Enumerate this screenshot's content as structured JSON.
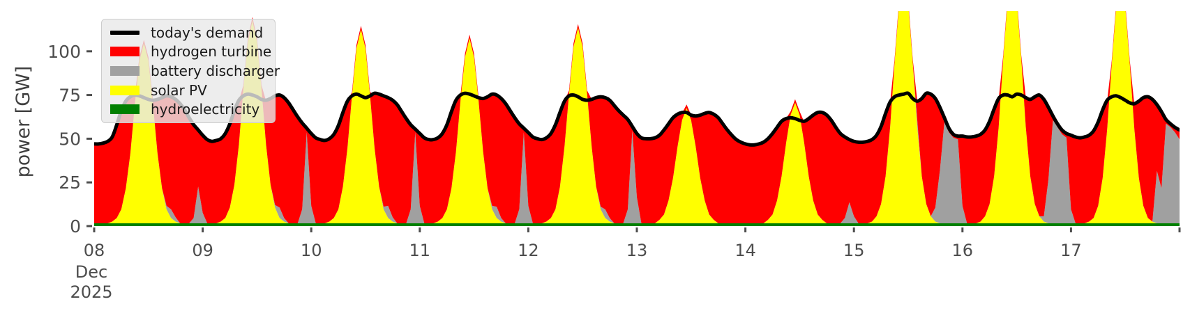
{
  "figure": {
    "background": "#ffffff",
    "tick_color": "#4d4d4d",
    "demand_line_color": "#000000",
    "demand_line_width": 5
  },
  "axes": {
    "ylabel": "power [GW]",
    "y_ticks": [
      0,
      25,
      50,
      75,
      100
    ],
    "ylim": [
      0,
      123
    ],
    "x_tick_labels": [
      "08",
      "09",
      "10",
      "11",
      "12",
      "13",
      "14",
      "15",
      "16",
      "17"
    ],
    "x_offset_label_line1": "Dec",
    "x_offset_label_line2": "2025",
    "grid": false
  },
  "legend": {
    "position": "upper left",
    "entries": [
      {
        "label": "today's demand",
        "color": "#000000",
        "type": "line"
      },
      {
        "label": "hydrogen turbine",
        "color": "#ff0000",
        "type": "patch"
      },
      {
        "label": "battery discharger",
        "color": "#a0a0a0",
        "type": "patch"
      },
      {
        "label": "solar PV",
        "color": "#ffff00",
        "type": "patch"
      },
      {
        "label": "hydroelectricity",
        "color": "#008000",
        "type": "patch"
      }
    ]
  },
  "chart_data": {
    "type": "area",
    "title": "",
    "xlabel": "Dec 2025",
    "ylabel": "power [GW]",
    "x_unit": "hours from 2025-12-08 00:00, hourly samples per day",
    "stack_order_bottom_to_top": [
      "hydroelectricity",
      "solar PV",
      "battery discharger",
      "hydrogen turbine"
    ],
    "hydroelectricity_constant_gw": 1.6,
    "colors": {
      "today's demand": "#000000",
      "hydrogen turbine": "#ff0000",
      "battery discharger": "#a0a0a0",
      "solar PV": "#ffff00",
      "hydroelectricity": "#008000"
    },
    "days": [
      {
        "label": "08",
        "demand": [
          47,
          47,
          47.5,
          48.5,
          51,
          58,
          66,
          71.5,
          74,
          75,
          74.5,
          73.5,
          72.5,
          72,
          72.5,
          73.5,
          74.5,
          74,
          72.5,
          70,
          66.5,
          62,
          58,
          55
        ],
        "solar_pv": [
          0,
          0,
          0,
          0,
          1,
          3,
          8,
          20,
          40,
          68,
          93,
          103,
          93,
          68,
          40,
          20,
          8,
          3,
          1,
          0,
          0,
          0,
          0,
          0
        ],
        "battery_discharger": [
          0,
          0,
          0,
          0,
          0,
          0,
          0,
          0,
          0,
          0,
          0,
          0,
          0,
          0,
          0,
          0,
          2,
          5,
          2.5,
          0,
          0,
          0,
          3,
          21
        ],
        "hydrogen_turbine": [
          45,
          45,
          46,
          47,
          48,
          53,
          56,
          50,
          32,
          5,
          2,
          2,
          2,
          2,
          31,
          52,
          63,
          64,
          67,
          68,
          65,
          60,
          53,
          32
        ]
      },
      {
        "label": "09",
        "demand": [
          52,
          49.5,
          48.5,
          49,
          50,
          53,
          58.5,
          66,
          72,
          74.5,
          75.5,
          75,
          74,
          72.5,
          72,
          73,
          74.5,
          75,
          73.5,
          70.5,
          66.5,
          62.5,
          59,
          56
        ],
        "solar_pv": [
          0,
          0,
          0,
          0,
          1,
          3,
          9,
          22,
          45,
          77,
          104,
          116,
          104,
          77,
          45,
          22,
          9,
          3,
          1,
          0,
          0,
          0,
          0,
          0
        ],
        "battery_discharger": [
          6,
          0,
          0,
          0,
          0,
          0,
          0,
          0,
          0,
          0,
          0,
          0,
          0,
          0,
          0,
          0,
          1.5,
          6,
          2,
          0,
          0,
          0,
          8,
          52
        ],
        "hydrogen_turbine": [
          44,
          48,
          47,
          47,
          47,
          48,
          48,
          42,
          25,
          2,
          2,
          2,
          2,
          2,
          25,
          49,
          63,
          64,
          69,
          69,
          65,
          61,
          49,
          2
        ]
      },
      {
        "label": "10",
        "demand": [
          53,
          50.5,
          49.5,
          49,
          50,
          52.5,
          57.5,
          65,
          71.5,
          74.5,
          75.5,
          74.5,
          73.5,
          74.5,
          76,
          75.5,
          74.5,
          73.5,
          72,
          69.5,
          65.5,
          61.5,
          58,
          55.5
        ],
        "solar_pv": [
          0,
          0,
          0,
          0,
          1,
          3,
          8,
          21,
          43,
          73,
          100,
          111,
          100,
          73,
          43,
          21,
          8,
          3,
          1,
          0,
          0,
          0,
          0,
          0
        ],
        "battery_discharger": [
          10,
          0,
          0,
          0,
          0,
          0,
          0,
          0,
          0,
          0,
          0,
          0,
          0,
          0,
          0,
          0,
          1.5,
          7,
          2.5,
          0,
          0,
          0,
          8,
          52
        ],
        "hydrogen_turbine": [
          41,
          49,
          48,
          47,
          47,
          48,
          48,
          42,
          27,
          2,
          2,
          2,
          2,
          2,
          31,
          53,
          63,
          62,
          67,
          68,
          64,
          60,
          48,
          2
        ]
      },
      {
        "label": "11",
        "demand": [
          53,
          50.5,
          49.5,
          49.5,
          50.5,
          53,
          58,
          65.5,
          72,
          75,
          76,
          75.5,
          74.5,
          73.5,
          73,
          74,
          75.5,
          75,
          73,
          70,
          66,
          62,
          58.5,
          56
        ],
        "solar_pv": [
          0,
          0,
          0,
          0,
          1,
          3,
          8,
          20,
          41,
          70,
          95,
          106,
          95,
          70,
          41,
          20,
          8,
          3,
          1,
          0,
          0,
          0,
          0,
          0
        ],
        "battery_discharger": [
          10,
          0,
          0,
          0,
          0,
          0,
          0,
          0,
          0,
          0,
          0,
          0,
          0,
          0,
          0,
          0,
          2,
          6.5,
          2,
          0,
          0,
          0,
          8,
          52
        ],
        "hydrogen_turbine": [
          41,
          49,
          48,
          48,
          48,
          50,
          48,
          44,
          29,
          3,
          2,
          2,
          2,
          2,
          30,
          52,
          64,
          64,
          68,
          68,
          64,
          60,
          49,
          2
        ]
      },
      {
        "label": "12",
        "demand": [
          53.5,
          51,
          50,
          49.5,
          50.5,
          53,
          58,
          65,
          71.5,
          74.5,
          75,
          74,
          72.5,
          72,
          72.5,
          73.5,
          74,
          73.5,
          72,
          69,
          66,
          63.5,
          61,
          57
        ],
        "solar_pv": [
          0,
          0,
          0,
          0,
          1,
          3,
          8,
          21,
          44,
          74,
          101,
          112,
          101,
          74,
          44,
          21,
          8,
          3,
          1,
          0,
          0,
          0,
          0,
          0
        ],
        "battery_discharger": [
          10,
          0,
          0,
          0,
          0,
          0,
          0,
          0,
          0,
          0,
          0,
          0,
          0,
          0,
          0,
          0,
          1.5,
          5,
          2,
          0,
          0,
          0,
          8,
          53
        ],
        "hydrogen_turbine": [
          42,
          49,
          48,
          48,
          48,
          48,
          48,
          42,
          26,
          2,
          2,
          2,
          2,
          2,
          27,
          51,
          63,
          64,
          67,
          67,
          64,
          62,
          51,
          2
        ]
      },
      {
        "label": "13",
        "demand": [
          53,
          50.5,
          50,
          50,
          50.5,
          52,
          55,
          58.5,
          62,
          64,
          65,
          65,
          63.5,
          63,
          63.5,
          64.5,
          65,
          64,
          62,
          58.5,
          55,
          52,
          49.5,
          48
        ],
        "solar_pv": [
          0,
          0,
          0,
          0,
          0,
          2,
          5,
          13,
          26,
          44,
          59,
          66,
          59,
          44,
          26,
          13,
          5,
          2,
          0,
          0,
          0,
          0,
          0,
          0
        ],
        "battery_discharger": [
          15,
          0,
          0,
          0,
          0,
          0,
          0,
          0,
          0,
          0,
          0,
          0,
          0,
          0,
          0,
          0,
          0,
          0,
          0,
          0,
          0,
          0,
          0,
          0
        ],
        "hydrogen_turbine": [
          36,
          49,
          48,
          48,
          49,
          48,
          48,
          44,
          34,
          18,
          4,
          2,
          3,
          17,
          36,
          50,
          58,
          60,
          60,
          57,
          53,
          50,
          48,
          46
        ]
      },
      {
        "label": "14",
        "demand": [
          47,
          46.5,
          46.5,
          47,
          48,
          50,
          53,
          56.5,
          60,
          61.5,
          62,
          61.5,
          60.5,
          60,
          61.5,
          63.5,
          65,
          65,
          63.5,
          60.5,
          56.5,
          53,
          51,
          49.5
        ],
        "solar_pv": [
          0,
          0,
          0,
          0,
          0,
          2,
          5,
          13,
          27,
          46,
          62,
          69,
          62,
          46,
          27,
          13,
          5,
          2,
          0,
          0,
          0,
          0,
          0,
          0
        ],
        "battery_discharger": [
          0,
          0,
          0,
          0,
          0,
          0,
          0,
          0,
          0,
          0,
          0,
          0,
          0,
          0,
          0,
          0,
          0,
          0,
          0,
          0,
          0,
          0,
          3,
          12
        ],
        "hydrogen_turbine": [
          45,
          45,
          45,
          45,
          46,
          46,
          46,
          42,
          31,
          14,
          2,
          2,
          2,
          12,
          33,
          49,
          58,
          61,
          62,
          59,
          55,
          51,
          46,
          36
        ]
      },
      {
        "label": "15",
        "demand": [
          48.5,
          48,
          48,
          48.5,
          49.5,
          52,
          57,
          64.5,
          71,
          74,
          75,
          75.5,
          76,
          73,
          71.5,
          73,
          76,
          75.5,
          73,
          68,
          62,
          56,
          52.5,
          51.5
        ],
        "solar_pv": [
          0,
          0,
          0,
          0,
          1,
          4,
          11,
          27,
          55,
          92,
          126,
          140,
          126,
          92,
          55,
          27,
          11,
          4,
          1,
          0,
          0,
          0,
          0,
          0
        ],
        "battery_discharger": [
          4,
          0,
          0,
          0,
          0,
          0,
          0,
          0,
          0,
          0,
          0,
          0,
          0,
          0,
          4,
          0,
          0,
          0,
          8,
          30,
          58,
          52,
          49,
          48
        ],
        "hydrogen_turbine": [
          43,
          46,
          46,
          47,
          47,
          46,
          44,
          36,
          14,
          2,
          2,
          2,
          2,
          2,
          11,
          44,
          63,
          70,
          62,
          36,
          2,
          2,
          2,
          2
        ]
      },
      {
        "label": "16",
        "demand": [
          51.5,
          51,
          51,
          51.5,
          52.5,
          55,
          60,
          67,
          73,
          75,
          75,
          74,
          75.5,
          75,
          73.5,
          72.5,
          74,
          75,
          72.5,
          68,
          63,
          58.5,
          55,
          53
        ],
        "solar_pv": [
          0,
          0,
          0,
          0,
          1,
          4,
          11,
          27,
          55,
          94,
          128,
          142,
          128,
          94,
          55,
          27,
          11,
          4,
          1,
          0,
          0,
          0,
          0,
          0
        ],
        "battery_discharger": [
          10,
          0,
          0,
          0,
          0,
          0,
          0,
          0,
          0,
          0,
          0,
          0,
          0,
          0,
          0,
          0,
          0,
          0,
          3,
          25,
          59,
          55,
          51,
          49
        ],
        "hydrogen_turbine": [
          40,
          49,
          49,
          50,
          50,
          49,
          47,
          38,
          16,
          2,
          2,
          2,
          2,
          2,
          17,
          44,
          61,
          69,
          67,
          41,
          2,
          2,
          2,
          2
        ]
      },
      {
        "label": "17",
        "demand": [
          52,
          51,
          50.5,
          51,
          52,
          54.5,
          59.5,
          66.5,
          72,
          74,
          74.5,
          73.5,
          72,
          70.5,
          70,
          71.5,
          73.5,
          74,
          72.5,
          69.5,
          65.5,
          61,
          58.5,
          56.5
        ],
        "solar_pv": [
          0,
          0,
          0,
          0,
          1,
          3,
          10,
          26,
          54,
          91,
          124,
          138,
          124,
          91,
          54,
          26,
          10,
          3,
          1,
          0,
          0,
          0,
          0,
          0
        ],
        "battery_discharger": [
          8,
          0,
          0,
          0,
          0,
          0,
          0,
          0,
          0,
          0,
          0,
          0,
          0,
          0,
          0,
          0,
          0,
          0,
          0,
          30,
          20,
          57,
          55,
          52
        ],
        "hydrogen_turbine": [
          42,
          49,
          49,
          49,
          49,
          50,
          48,
          39,
          16,
          2,
          2,
          2,
          2,
          2,
          14,
          44,
          62,
          69,
          70,
          38,
          44,
          2,
          2,
          3
        ]
      }
    ],
    "end_point": {
      "demand": 55,
      "solar_pv": 0,
      "battery_discharger": 48,
      "hydrogen_turbine": 5
    }
  }
}
